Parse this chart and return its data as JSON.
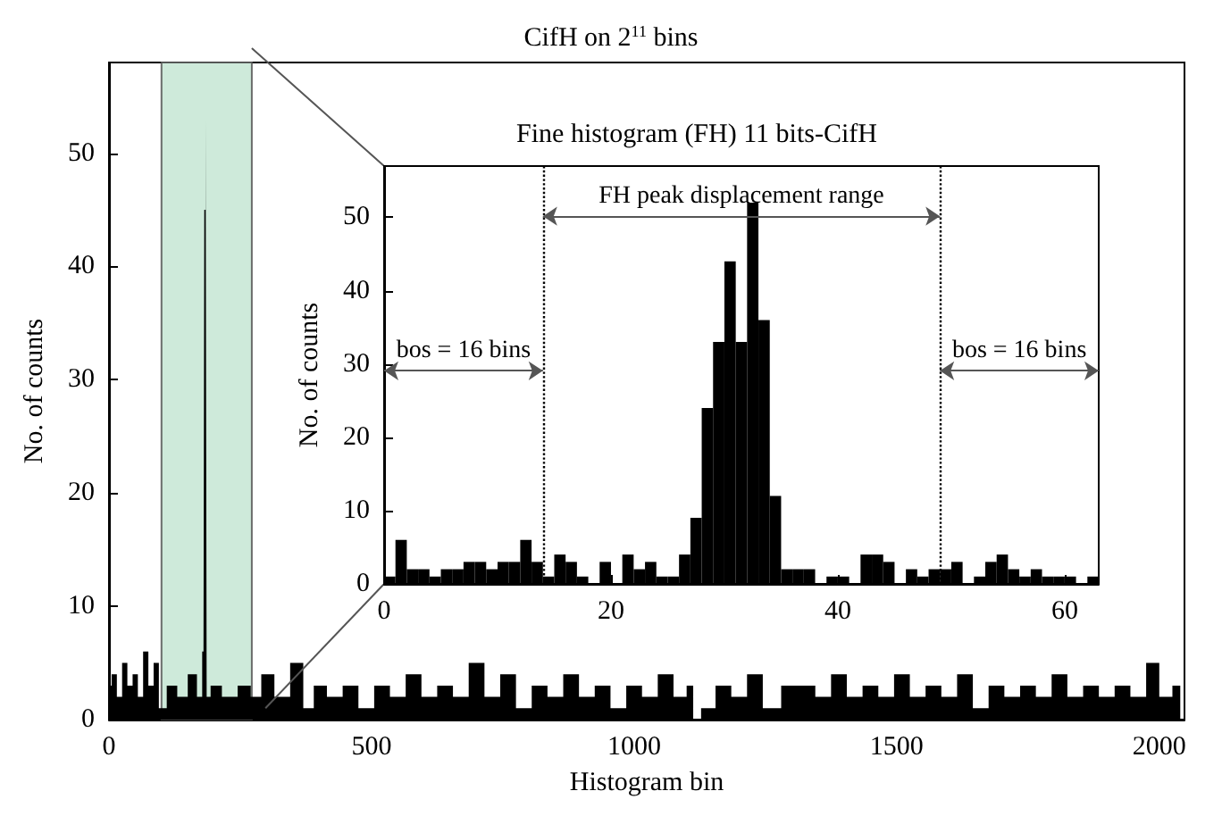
{
  "chart_data": [
    {
      "type": "area",
      "title": "CifH on 2$^{11}$ bins",
      "xlabel": "Histogram bin",
      "ylabel": "No. of counts",
      "color": "#000000",
      "x": [
        0,
        10,
        20,
        30,
        40,
        50,
        60,
        70,
        80,
        90,
        100,
        120,
        140,
        160,
        175,
        180,
        183,
        185,
        187,
        200,
        230,
        260,
        280,
        300,
        330,
        360,
        380,
        400,
        430,
        460,
        490,
        520,
        550,
        580,
        610,
        640,
        670,
        700,
        730,
        760,
        790,
        820,
        850,
        880,
        910,
        940,
        970,
        1000,
        1030,
        1060,
        1090,
        1110,
        1115,
        1140,
        1170,
        1200,
        1230,
        1260,
        1300,
        1330,
        1360,
        1390,
        1420,
        1450,
        1480,
        1510,
        1540,
        1570,
        1600,
        1630,
        1660,
        1690,
        1720,
        1750,
        1780,
        1810,
        1840,
        1870,
        1900,
        1930,
        1960,
        1990,
        2010,
        2040
      ],
      "values": [
        3,
        4,
        2,
        5,
        3,
        4,
        2,
        6,
        3,
        5,
        1,
        3,
        2,
        4,
        2,
        6,
        45,
        53,
        2,
        3,
        2,
        3,
        2,
        4,
        2,
        5,
        1,
        3,
        2,
        3,
        1,
        3,
        2,
        4,
        2,
        3,
        2,
        5,
        2,
        4,
        1,
        3,
        2,
        4,
        2,
        3,
        1,
        3,
        2,
        4,
        2,
        3,
        0,
        1,
        3,
        2,
        4,
        1,
        3,
        3,
        2,
        4,
        2,
        3,
        2,
        4,
        2,
        3,
        2,
        4,
        1,
        3,
        2,
        3,
        2,
        4,
        2,
        3,
        2,
        3,
        2,
        5,
        2,
        3
      ],
      "xlim": [
        0,
        2048
      ],
      "xticks": [
        0,
        500,
        1000,
        1500,
        2000
      ],
      "ylim": [
        0,
        58
      ],
      "yticks": [
        0,
        10,
        20,
        30,
        40,
        50
      ],
      "bands": [
        {
          "axis": "x",
          "from": 100,
          "to": 272,
          "color": "#c6e6d3"
        }
      ]
    },
    {
      "type": "histogram",
      "title": "Fine histogram (FH) 11 bits-CifH",
      "ylabel": "No. of counts",
      "color": "#000000",
      "bins": [
        0,
        1,
        2,
        3,
        4,
        5,
        6,
        7,
        8,
        9,
        10,
        11,
        12,
        13,
        14,
        15,
        16,
        17,
        18,
        19,
        20,
        21,
        22,
        23,
        24,
        25,
        26,
        27,
        28,
        29,
        30,
        31,
        32,
        33,
        34,
        35,
        36,
        37,
        38,
        39,
        40,
        41,
        42,
        43,
        44,
        45,
        46,
        47,
        48,
        49,
        50,
        51,
        52,
        53,
        54,
        55,
        56,
        57,
        58,
        59,
        60,
        61,
        62,
        63
      ],
      "values": [
        1,
        6,
        2,
        2,
        1,
        2,
        2,
        3,
        3,
        2,
        3,
        3,
        6,
        3,
        1,
        4,
        3,
        1,
        0,
        3,
        0,
        4,
        2,
        3,
        1,
        1,
        4,
        9,
        24,
        33,
        44,
        33,
        52,
        36,
        12,
        2,
        2,
        2,
        0,
        1,
        1,
        0,
        4,
        4,
        3,
        0,
        2,
        1,
        2,
        2,
        3,
        0,
        1,
        3,
        4,
        2,
        1,
        2,
        1,
        1,
        1,
        0,
        1
      ],
      "xlim": [
        0,
        63
      ],
      "xticks": [
        0,
        20,
        40,
        60
      ],
      "ylim": [
        0,
        57
      ],
      "yticks": [
        0,
        10,
        20,
        30,
        40,
        50
      ],
      "ref_lines": [
        {
          "axis": "x",
          "value": 14,
          "line_style": "dotted"
        },
        {
          "axis": "x",
          "value": 49,
          "line_style": "dotted"
        }
      ],
      "annotations": [
        "FH peak displacement range",
        "bos = 16 bins",
        "bos = 16 bins"
      ]
    }
  ]
}
